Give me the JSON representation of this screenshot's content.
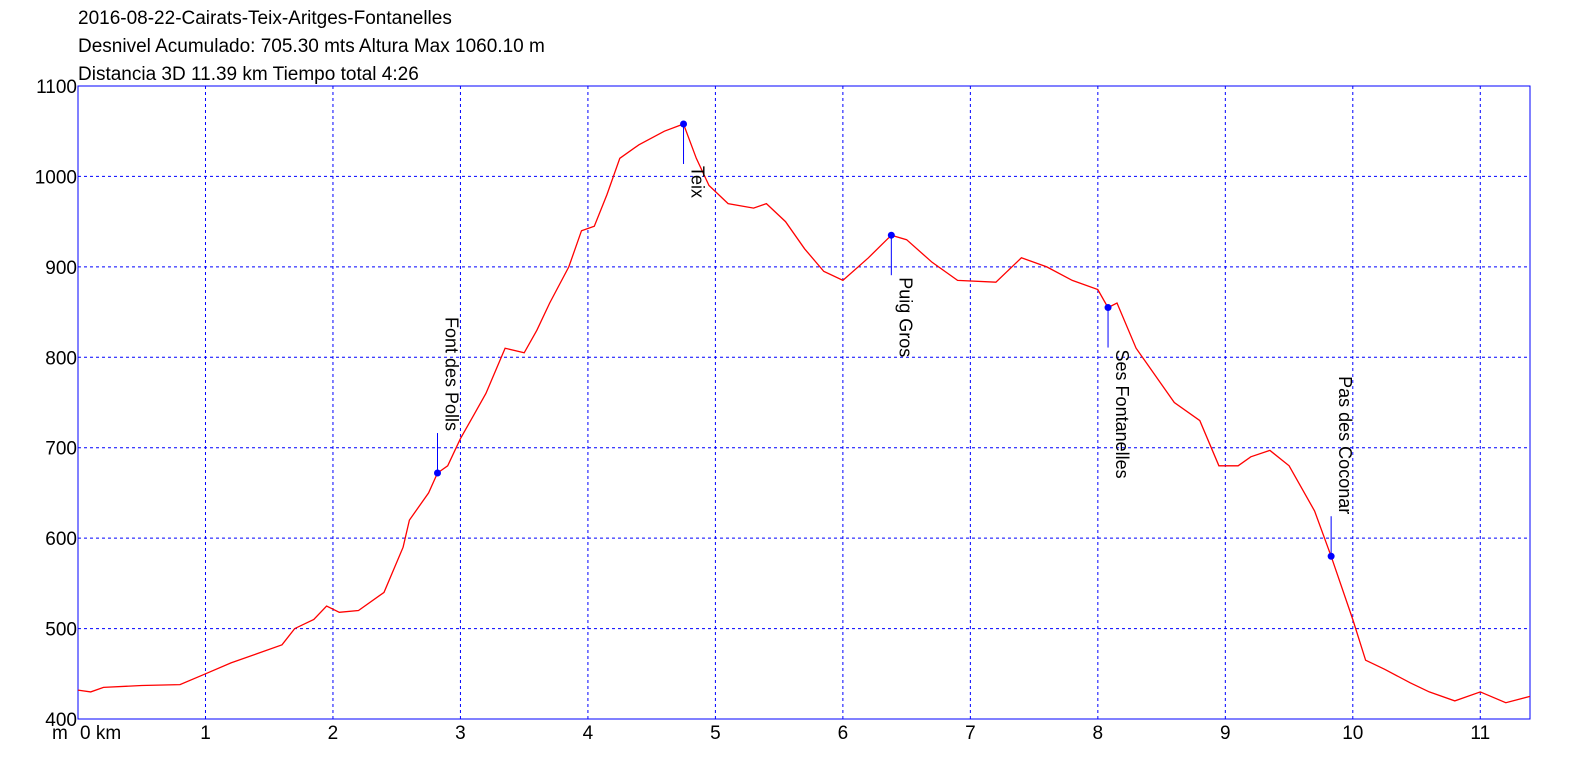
{
  "chart_data": {
    "type": "line",
    "title": "2016-08-22-Cairats-Teix-Aritges-Fontanelles",
    "subtitle_lines": [
      "Desnivel Acumulado: 705.30 mts  Altura Max 1060.10 m",
      "Distancia 3D 11.39 km  Tiempo total 4:26"
    ],
    "y_label": "m",
    "x": [
      0,
      0.1,
      0.2,
      0.5,
      0.8,
      1.0,
      1.2,
      1.4,
      1.6,
      1.7,
      1.85,
      1.95,
      2.05,
      2.2,
      2.4,
      2.55,
      2.6,
      2.75,
      2.82,
      2.9,
      3.0,
      3.1,
      3.2,
      3.35,
      3.5,
      3.6,
      3.7,
      3.85,
      3.95,
      4.05,
      4.15,
      4.25,
      4.4,
      4.6,
      4.75,
      4.85,
      4.95,
      5.1,
      5.3,
      5.4,
      5.55,
      5.7,
      5.85,
      6.0,
      6.2,
      6.38,
      6.5,
      6.7,
      6.9,
      7.2,
      7.4,
      7.6,
      7.8,
      8.0,
      8.08,
      8.15,
      8.3,
      8.45,
      8.6,
      8.8,
      8.95,
      9.1,
      9.2,
      9.35,
      9.5,
      9.7,
      9.83,
      10.0,
      10.1,
      10.25,
      10.45,
      10.6,
      10.8,
      11.0,
      11.2,
      11.39
    ],
    "values": [
      432,
      430,
      435,
      437,
      438,
      450,
      462,
      472,
      482,
      500,
      510,
      525,
      518,
      520,
      540,
      590,
      620,
      650,
      672,
      680,
      710,
      735,
      760,
      810,
      805,
      830,
      860,
      900,
      940,
      945,
      980,
      1020,
      1035,
      1050,
      1058,
      1020,
      990,
      970,
      965,
      970,
      950,
      920,
      895,
      885,
      910,
      935,
      930,
      905,
      885,
      883,
      910,
      900,
      885,
      875,
      855,
      860,
      810,
      780,
      750,
      730,
      680,
      680,
      690,
      697,
      680,
      630,
      580,
      510,
      465,
      455,
      440,
      430,
      420,
      430,
      418,
      425
    ],
    "color": "#ff0000",
    "xlim": [
      0,
      11.39
    ],
    "xticks": [
      {
        "value": 0,
        "label": "0 km"
      },
      1,
      2,
      3,
      4,
      5,
      6,
      7,
      8,
      9,
      10,
      11
    ],
    "ylim": [
      400,
      1100
    ],
    "yticks": [
      400,
      500,
      600,
      700,
      800,
      900,
      1000,
      1100
    ],
    "grid": true,
    "waypoint_color": "#0000ff",
    "waypoints": [
      {
        "label": "Font des Polls",
        "x": 2.82,
        "y": 672,
        "side": "above"
      },
      {
        "label": "Teix",
        "x": 4.75,
        "y": 1058,
        "side": "below"
      },
      {
        "label": "Puig Gros",
        "x": 6.38,
        "y": 935,
        "side": "below"
      },
      {
        "label": "Ses Fontanelles",
        "x": 8.08,
        "y": 855,
        "side": "below"
      },
      {
        "label": "Pas des Coconar",
        "x": 9.83,
        "y": 580,
        "side": "above"
      }
    ]
  }
}
